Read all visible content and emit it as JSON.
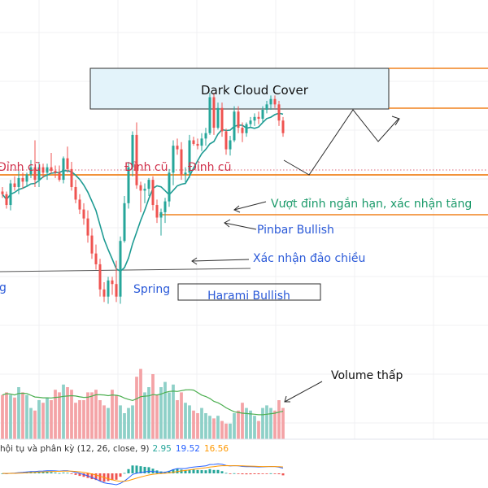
{
  "colors": {
    "bull": "#26a69a",
    "bear": "#ef5350",
    "vol_bull": "#8ed0c8",
    "vol_bear": "#f4a3a6",
    "ma": "#1e9b93",
    "orange": "#f0821e",
    "blue_text": "#2a59d8",
    "green_text": "#1b9a6a",
    "dinh_text": "#d0304a",
    "macd_line": "#2962ff",
    "signal_line": "#ff9800",
    "box_fill": "#e3f3fa",
    "grid": "#f0f0f3"
  },
  "annotations": {
    "dark_cloud": "Dark Cloud Cover",
    "dinh_cu_1": "Đỉnh cũ",
    "dinh_cu_2": "Đỉnh cũ",
    "dinh_cu_3": "Đỉnh cũ",
    "vuot_dinh": "Vượt đỉnh ngắn hạn, xác nhận tăng",
    "pinbar": "Pinbar Bullish",
    "xac_nhan": "Xác nhận đảo chiều",
    "spring_left": "g",
    "spring": "Spring",
    "harami": "Harami Bullish",
    "volume_thap": "Volume thấp"
  },
  "macd": {
    "label": "hội tụ và phân kỳ (12, 26, close, 9)",
    "v1": "2.95",
    "v2": "19.52",
    "v3": "16.56",
    "v1_color": "#26a69a",
    "v2_color": "#2962ff",
    "v3_color": "#ff9800"
  },
  "chart_data": {
    "type": "candlestick",
    "candles": [
      [
        235,
        240,
        228,
        232
      ],
      [
        232,
        235,
        216,
        220
      ],
      [
        220,
        248,
        214,
        244
      ],
      [
        244,
        252,
        236,
        240
      ],
      [
        240,
        258,
        232,
        250
      ],
      [
        250,
        256,
        238,
        246
      ],
      [
        246,
        256,
        240,
        254
      ],
      [
        254,
        270,
        250,
        262
      ],
      [
        262,
        292,
        240,
        248
      ],
      [
        248,
        268,
        240,
        262
      ],
      [
        262,
        266,
        250,
        256
      ],
      [
        256,
        266,
        248,
        262
      ],
      [
        262,
        278,
        255,
        258
      ],
      [
        258,
        264,
        250,
        256
      ],
      [
        256,
        264,
        246,
        248
      ],
      [
        248,
        274,
        244,
        272
      ],
      [
        272,
        285,
        256,
        260
      ],
      [
        260,
        268,
        236,
        240
      ],
      [
        240,
        248,
        222,
        226
      ],
      [
        226,
        232,
        210,
        215
      ],
      [
        215,
        222,
        198,
        205
      ],
      [
        205,
        214,
        178,
        186
      ],
      [
        186,
        194,
        160,
        166
      ],
      [
        166,
        176,
        148,
        154
      ],
      [
        154,
        160,
        118,
        126
      ],
      [
        126,
        134,
        112,
        118
      ],
      [
        118,
        140,
        110,
        136
      ],
      [
        136,
        140,
        120,
        132
      ],
      [
        132,
        158,
        112,
        118
      ],
      [
        118,
        185,
        110,
        180
      ],
      [
        180,
        230,
        178,
        222
      ],
      [
        222,
        268,
        216,
        262
      ],
      [
        262,
        302,
        252,
        298
      ],
      [
        298,
        312,
        238,
        242
      ],
      [
        242,
        246,
        212,
        236
      ],
      [
        236,
        244,
        222,
        238
      ],
      [
        238,
        250,
        230,
        248
      ],
      [
        248,
        252,
        214,
        220
      ],
      [
        220,
        226,
        200,
        206
      ],
      [
        206,
        216,
        186,
        212
      ],
      [
        212,
        228,
        200,
        224
      ],
      [
        224,
        260,
        218,
        256
      ],
      [
        256,
        292,
        242,
        286
      ],
      [
        286,
        294,
        276,
        282
      ],
      [
        282,
        290,
        248,
        254
      ],
      [
        254,
        262,
        244,
        256
      ],
      [
        256,
        298,
        250,
        292
      ],
      [
        292,
        296,
        286,
        288
      ],
      [
        288,
        294,
        282,
        286
      ],
      [
        286,
        300,
        280,
        294
      ],
      [
        294,
        306,
        286,
        300
      ],
      [
        300,
        345,
        298,
        340
      ],
      [
        340,
        345,
        298,
        306
      ],
      [
        306,
        334,
        304,
        328
      ],
      [
        328,
        334,
        296,
        302
      ],
      [
        302,
        305,
        276,
        282
      ],
      [
        282,
        297,
        275,
        292
      ],
      [
        292,
        330,
        290,
        324
      ],
      [
        324,
        330,
        300,
        306
      ],
      [
        306,
        312,
        290,
        300
      ],
      [
        300,
        312,
        296,
        310
      ],
      [
        310,
        318,
        306,
        314
      ],
      [
        314,
        322,
        308,
        318
      ],
      [
        318,
        324,
        310,
        316
      ],
      [
        316,
        330,
        312,
        326
      ],
      [
        326,
        336,
        322,
        332
      ],
      [
        332,
        342,
        326,
        338
      ],
      [
        338,
        342,
        328,
        332
      ],
      [
        332,
        336,
        308,
        314
      ],
      [
        314,
        318,
        296,
        300
      ]
    ],
    "volume": [
      34,
      36,
      34,
      32,
      40,
      36,
      34,
      24,
      22,
      30,
      28,
      32,
      30,
      38,
      36,
      42,
      40,
      38,
      28,
      30,
      30,
      36,
      36,
      38,
      30,
      26,
      24,
      38,
      34,
      26,
      20,
      24,
      26,
      48,
      54,
      36,
      40,
      50,
      34,
      40,
      44,
      36,
      42,
      30,
      36,
      28,
      26,
      22,
      20,
      24,
      20,
      18,
      16,
      18,
      14,
      12,
      12,
      20,
      22,
      28,
      24,
      22,
      18,
      14,
      24,
      26,
      24,
      22,
      30,
      24
    ],
    "y_range": [
      115,
      345
    ]
  }
}
